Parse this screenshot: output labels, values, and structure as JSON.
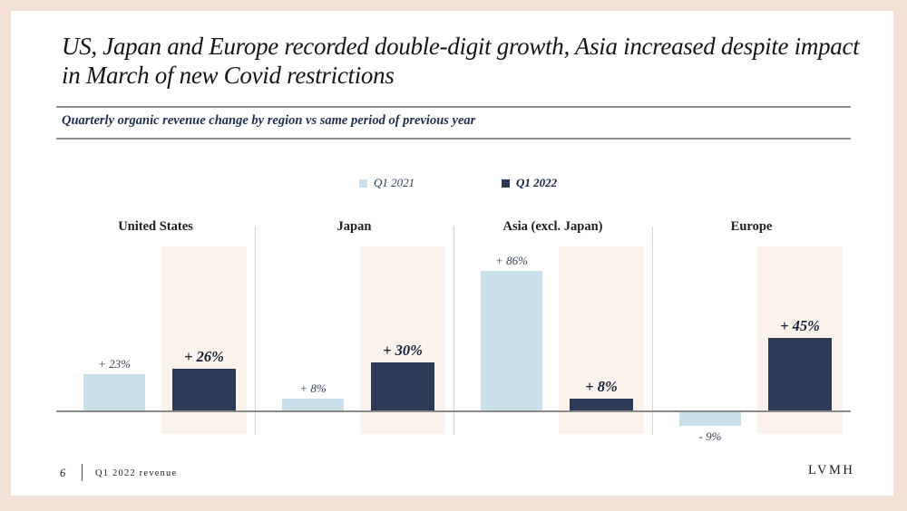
{
  "slide": {
    "title": "US, Japan and Europe recorded double-digit growth, Asia increased despite impact in March of new Covid restrictions",
    "subtitle": "Quarterly organic revenue change by region vs same period of previous year",
    "footer": {
      "page_number": "6",
      "label": "Q1 2022 revenue",
      "brand": "LVMH"
    }
  },
  "legend": [
    {
      "label": "Q1 2021",
      "color": "#c9dfe9"
    },
    {
      "label": "Q1 2022",
      "color": "#2b3b57"
    }
  ],
  "chart_data": {
    "type": "bar",
    "title": "Quarterly organic revenue change by region vs same period of previous year",
    "unit": "percent organic revenue change vs same period of previous year",
    "series_names": [
      "Q1 2021",
      "Q1 2022"
    ],
    "categories": [
      "United States",
      "Japan",
      "Asia (excl. Japan)",
      "Europe"
    ],
    "regions": [
      {
        "name": "United States",
        "values": [
          23,
          26
        ],
        "labels": [
          "+ 23%",
          "+ 26%"
        ]
      },
      {
        "name": "Japan",
        "values": [
          8,
          30
        ],
        "labels": [
          "+ 8%",
          "+ 30%"
        ]
      },
      {
        "name": "Asia (excl. Japan)",
        "values": [
          86,
          8
        ],
        "labels": [
          "+ 86%",
          "+ 8%"
        ]
      },
      {
        "name": "Europe",
        "values": [
          -9,
          45
        ],
        "labels": [
          "- 9%",
          "+ 45%"
        ]
      }
    ],
    "baseline": 0,
    "ylim": [
      -20,
      100
    ],
    "grid": false,
    "legend_position": "top-center",
    "colors": {
      "q1_2021": "#c9dfe9",
      "q1_2022": "#2b3b57",
      "highlight_panel": "#faf2eb",
      "baseline_line": "#8a8a8a",
      "frame": "#f3e1d6"
    }
  }
}
